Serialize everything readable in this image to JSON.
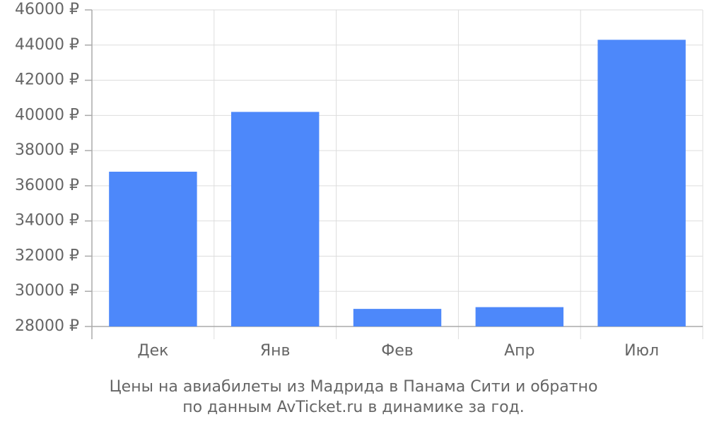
{
  "chart_data": {
    "type": "bar",
    "caption": [
      "Цены на авиабилеты из Мадрида в Панама Сити и обратно",
      "по данным AvTicket.ru в динамике за год."
    ],
    "categories": [
      "Дек",
      "Янв",
      "Фев",
      "Апр",
      "Июл"
    ],
    "values": [
      36800,
      40200,
      29000,
      29100,
      44300
    ],
    "color": "#4d88fa",
    "ylim": [
      28000,
      46000
    ],
    "yticks": [
      {
        "value": 28000,
        "label": "28000 ₽"
      },
      {
        "value": 30000,
        "label": "30000 ₽"
      },
      {
        "value": 32000,
        "label": "32000 ₽"
      },
      {
        "value": 34000,
        "label": "34000 ₽"
      },
      {
        "value": 36000,
        "label": "36000 ₽"
      },
      {
        "value": 38000,
        "label": "38000 ₽"
      },
      {
        "value": 40000,
        "label": "40000 ₽"
      },
      {
        "value": 42000,
        "label": "42000 ₽"
      },
      {
        "value": 44000,
        "label": "44000 ₽"
      },
      {
        "value": 46000,
        "label": "46000 ₽"
      }
    ],
    "grid": true
  }
}
